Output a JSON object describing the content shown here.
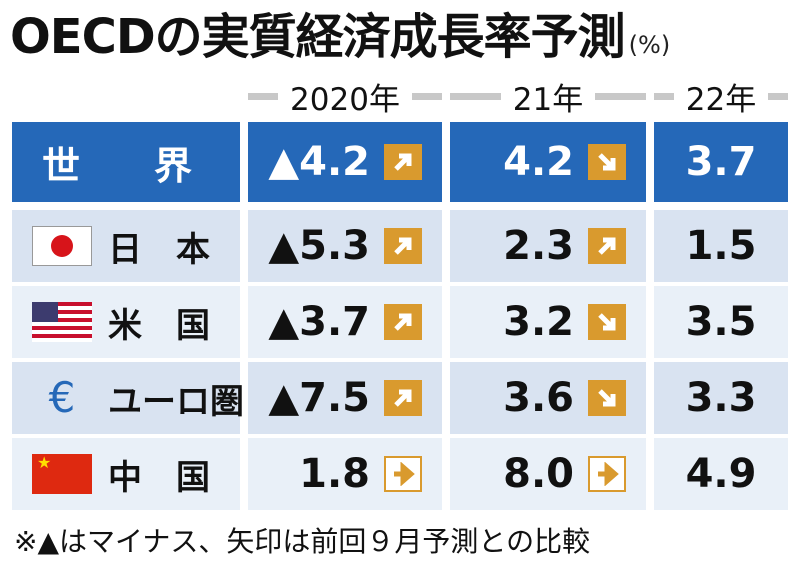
{
  "title": "OECDの実質経済成長率予測",
  "unit": "(%)",
  "years": [
    "2020年",
    "21年",
    "22年"
  ],
  "rows": [
    {
      "name": "世　界",
      "flag": "",
      "v2020": "▲4.2",
      "a2020": "up",
      "v2021": "4.2",
      "a2021": "down",
      "v2022": "3.7"
    },
    {
      "name": "日　本",
      "flag": "japan-flag",
      "v2020": "▲5.3",
      "a2020": "up",
      "v2021": "2.3",
      "a2021": "up",
      "v2022": "1.5"
    },
    {
      "name": "米　国",
      "flag": "us-flag",
      "v2020": "▲3.7",
      "a2020": "up",
      "v2021": "3.2",
      "a2021": "down",
      "v2022": "3.5"
    },
    {
      "name": "ユーロ圏",
      "flag": "euro-symbol",
      "v2020": "▲7.5",
      "a2020": "up",
      "v2021": "3.6",
      "a2021": "down",
      "v2022": "3.3"
    },
    {
      "name": "中　国",
      "flag": "china-flag",
      "v2020": "1.8",
      "a2020": "flat",
      "v2021": "8.0",
      "a2021": "flat",
      "v2022": "4.9"
    }
  ],
  "note": "※▲はマイナス、矢印は前回９月予測との比較",
  "colors": {
    "header": "#2568b8",
    "arrow": "#d99a2e",
    "stripe_a": "#d9e3f1",
    "stripe_b": "#e9f0f8"
  }
}
